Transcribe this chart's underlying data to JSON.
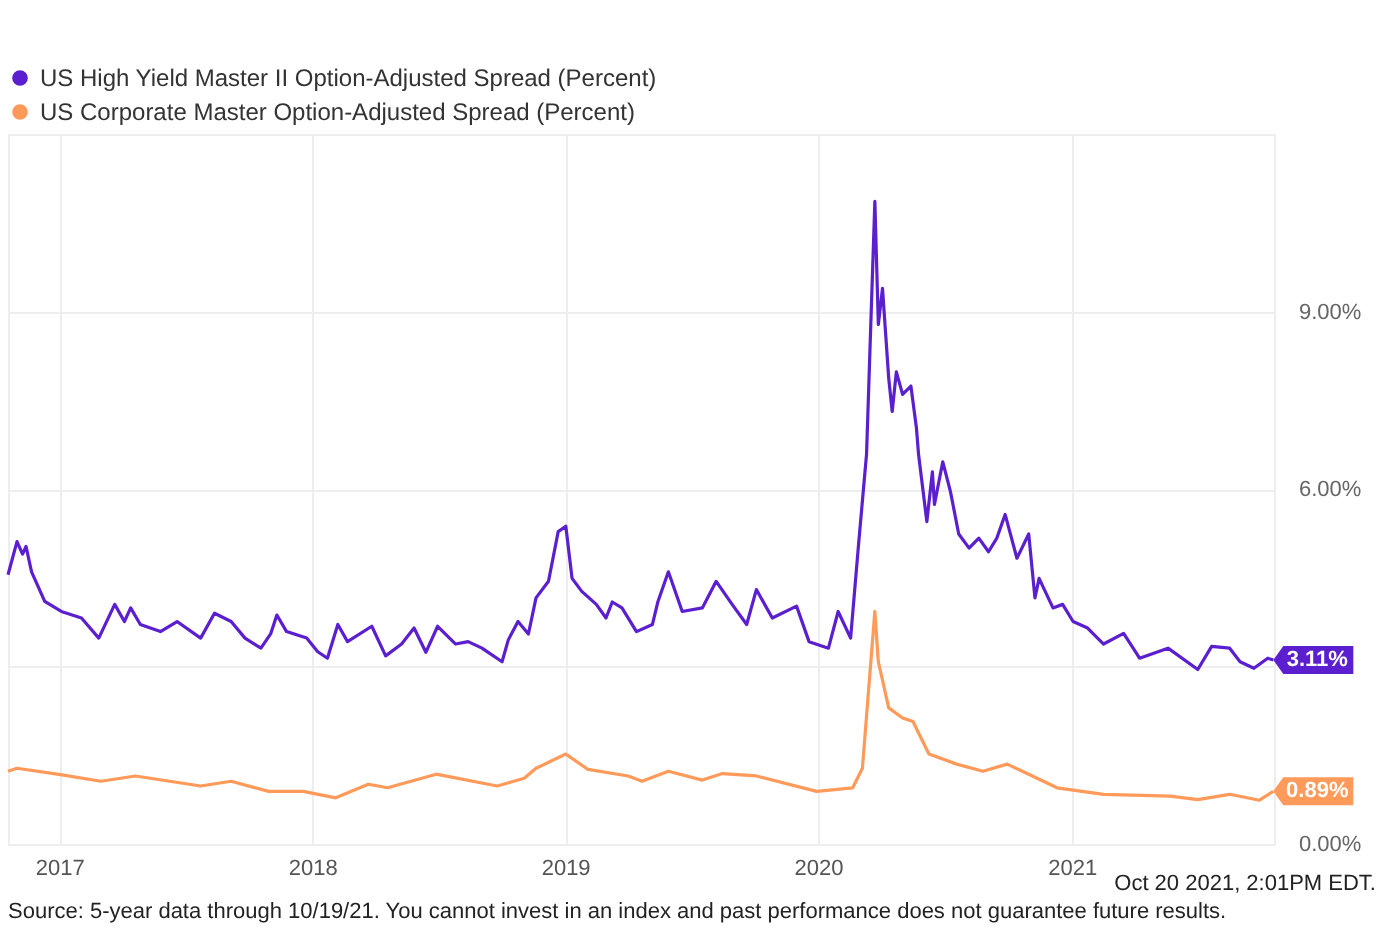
{
  "chart_data": {
    "type": "line",
    "xlim": [
      "2016-10-19",
      "2021-10-20"
    ],
    "xticks": [
      "2017",
      "2018",
      "2019",
      "2020",
      "2021"
    ],
    "ylim": [
      0,
      12
    ],
    "yticks": [
      {
        "value": 0,
        "label": "0.00%"
      },
      {
        "value": 3,
        "label": null
      },
      {
        "value": 6,
        "label": "6.00%"
      },
      {
        "value": 9,
        "label": "9.00%"
      }
    ],
    "grid": true,
    "legend": "top left",
    "annotations": [
      "Oct 20 2021, 2:01PM EDT.",
      "Source: 5-year data through 10/19/21. You cannot invest in an index and past performance does not guarantee future results."
    ],
    "series": [
      {
        "name": "US High Yield Master II Option-Adjusted Spread (Percent)",
        "color": "#5b1fd0",
        "x": [
          "2016-10-19",
          "2016-11-01",
          "2016-11-09",
          "2016-11-14",
          "2016-11-22",
          "2016-12-11",
          "2017-01-04",
          "2017-02-02",
          "2017-02-27",
          "2017-03-22",
          "2017-04-05",
          "2017-04-14",
          "2017-04-28",
          "2017-05-27",
          "2017-06-20",
          "2017-07-24",
          "2017-08-13",
          "2017-09-06",
          "2017-09-26",
          "2017-10-19",
          "2017-11-02",
          "2017-11-11",
          "2017-11-25",
          "2017-12-24",
          "2018-01-09",
          "2018-01-23",
          "2018-02-07",
          "2018-02-21",
          "2018-03-28",
          "2018-04-17",
          "2018-05-10",
          "2018-05-28",
          "2018-06-14",
          "2018-07-01",
          "2018-07-27",
          "2018-08-14",
          "2018-09-03",
          "2018-10-02",
          "2018-10-11",
          "2018-10-25",
          "2018-11-09",
          "2018-11-20",
          "2018-12-08",
          "2018-12-22",
          "2019-01-02",
          "2019-01-11",
          "2019-01-25",
          "2019-02-15",
          "2019-03-01",
          "2019-03-10",
          "2019-03-24",
          "2019-04-14",
          "2019-05-07",
          "2019-05-15",
          "2019-05-30",
          "2019-06-19",
          "2019-07-18",
          "2019-08-07",
          "2019-08-30",
          "2019-09-20",
          "2019-10-04",
          "2019-10-27",
          "2019-12-01",
          "2019-12-19",
          "2020-01-16",
          "2020-01-30",
          "2020-02-17",
          "2020-02-28",
          "2020-03-11",
          "2020-03-16",
          "2020-03-23",
          "2020-03-28",
          "2020-04-03",
          "2020-04-12",
          "2020-04-17",
          "2020-04-23",
          "2020-05-02",
          "2020-05-14",
          "2020-05-22",
          "2020-05-25",
          "2020-06-06",
          "2020-06-14",
          "2020-06-17",
          "2020-06-29",
          "2020-07-10",
          "2020-07-22",
          "2020-08-06",
          "2020-08-20",
          "2020-09-03",
          "2020-09-15",
          "2020-09-27",
          "2020-10-14",
          "2020-10-31",
          "2020-11-09",
          "2020-11-15",
          "2020-12-05",
          "2020-12-19",
          "2021-01-03",
          "2021-01-24",
          "2021-02-16",
          "2021-03-17",
          "2021-04-09",
          "2021-05-20",
          "2021-07-02",
          "2021-07-22",
          "2021-08-17",
          "2021-09-01",
          "2021-09-21",
          "2021-10-11",
          "2021-10-19"
        ],
        "values": [
          4.55,
          5.11,
          4.9,
          5.03,
          4.6,
          4.1,
          3.93,
          3.82,
          3.48,
          4.05,
          3.76,
          3.99,
          3.71,
          3.59,
          3.76,
          3.48,
          3.9,
          3.76,
          3.48,
          3.31,
          3.55,
          3.87,
          3.59,
          3.48,
          3.25,
          3.14,
          3.71,
          3.42,
          3.68,
          3.18,
          3.38,
          3.65,
          3.24,
          3.68,
          3.38,
          3.42,
          3.31,
          3.08,
          3.45,
          3.76,
          3.55,
          4.16,
          4.44,
          5.28,
          5.37,
          4.49,
          4.27,
          4.05,
          3.82,
          4.09,
          3.99,
          3.59,
          3.71,
          4.1,
          4.6,
          3.93,
          3.99,
          4.44,
          4.05,
          3.71,
          4.3,
          3.82,
          4.02,
          3.42,
          3.31,
          3.93,
          3.48,
          5.0,
          6.59,
          8.38,
          10.86,
          8.78,
          9.39,
          7.87,
          7.31,
          7.98,
          7.6,
          7.74,
          7.03,
          6.59,
          5.45,
          6.29,
          5.74,
          6.46,
          5.96,
          5.24,
          5.0,
          5.17,
          4.94,
          5.17,
          5.57,
          4.83,
          5.24,
          4.16,
          4.49,
          3.99,
          4.05,
          3.76,
          3.65,
          3.38,
          3.56,
          3.14,
          3.31,
          2.95,
          3.34,
          3.31,
          3.08,
          2.97,
          3.14,
          3.11
        ],
        "value_labels": [
          null,
          null,
          null,
          null,
          null,
          null,
          null,
          null,
          null,
          null,
          null,
          null,
          null,
          null,
          null,
          null,
          null,
          null,
          null,
          null,
          null,
          null,
          null,
          null,
          null,
          null,
          null,
          null,
          null,
          null,
          null,
          null,
          null,
          null,
          null,
          null,
          null,
          null,
          null,
          null,
          null,
          null,
          null,
          null,
          null,
          null,
          null,
          null,
          null,
          null,
          null,
          null,
          null,
          null,
          null,
          null,
          null,
          null,
          null,
          null,
          null,
          null,
          null,
          null,
          null,
          null,
          null,
          null,
          null,
          null,
          null,
          null,
          null,
          null,
          null,
          null,
          null,
          null,
          null,
          null,
          null,
          null,
          null,
          null,
          null,
          null,
          null,
          null,
          null,
          null,
          null,
          null,
          null,
          null,
          null,
          null,
          null,
          null,
          null,
          null,
          null,
          null,
          null,
          null,
          null,
          null,
          null,
          null,
          null,
          "3.11%"
        ]
      },
      {
        "name": "US Corporate Master Option-Adjusted Spread (Percent)",
        "color": "#ff9a5a",
        "x": [
          "2016-10-19",
          "2016-11-01",
          "2016-12-29",
          "2017-03-02",
          "2017-04-21",
          "2017-07-24",
          "2017-09-06",
          "2017-10-30",
          "2017-12-19",
          "2018-02-04",
          "2018-03-23",
          "2018-04-20",
          "2018-06-29",
          "2018-09-25",
          "2018-11-03",
          "2018-11-20",
          "2019-01-02",
          "2019-02-03",
          "2019-04-02",
          "2019-04-22",
          "2019-05-30",
          "2019-07-18",
          "2019-08-16",
          "2019-10-04",
          "2019-12-30",
          "2020-02-20",
          "2020-03-05",
          "2020-03-23",
          "2020-03-28",
          "2020-04-12",
          "2020-05-02",
          "2020-05-17",
          "2020-06-09",
          "2020-07-19",
          "2020-08-26",
          "2020-09-30",
          "2020-10-31",
          "2020-12-11",
          "2021-02-16",
          "2021-05-23",
          "2021-07-02",
          "2021-08-17",
          "2021-09-29",
          "2021-10-19"
        ],
        "values": [
          1.23,
          1.28,
          1.18,
          1.06,
          1.15,
          0.98,
          1.06,
          0.89,
          0.89,
          0.78,
          1.01,
          0.95,
          1.18,
          0.98,
          1.11,
          1.28,
          1.52,
          1.26,
          1.15,
          1.06,
          1.23,
          1.08,
          1.19,
          1.15,
          0.89,
          0.95,
          1.28,
          3.93,
          3.08,
          2.3,
          2.13,
          2.07,
          1.52,
          1.35,
          1.23,
          1.35,
          1.18,
          0.95,
          0.84,
          0.81,
          0.75,
          0.84,
          0.74,
          0.89
        ],
        "value_labels": [
          null,
          null,
          null,
          null,
          null,
          null,
          null,
          null,
          null,
          null,
          null,
          null,
          null,
          null,
          null,
          null,
          null,
          null,
          null,
          null,
          null,
          null,
          null,
          null,
          null,
          null,
          null,
          null,
          null,
          null,
          null,
          null,
          null,
          null,
          null,
          null,
          null,
          null,
          null,
          null,
          null,
          null,
          null,
          "0.89%"
        ]
      }
    ]
  }
}
